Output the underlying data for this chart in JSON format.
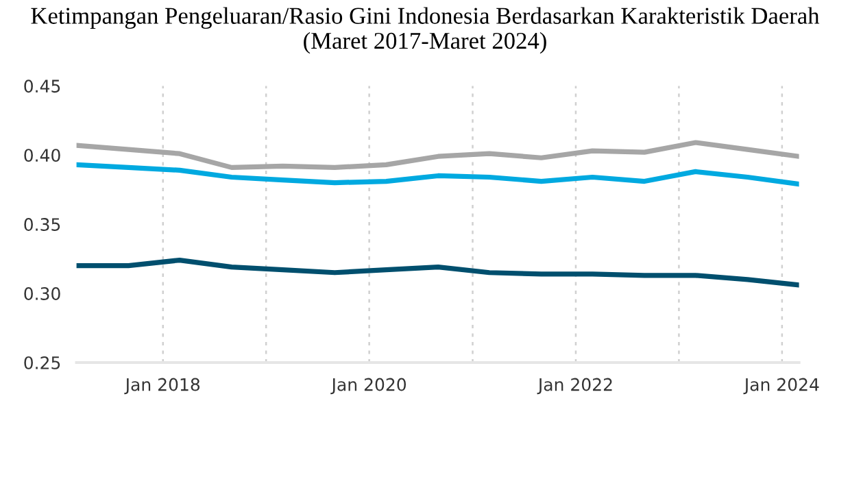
{
  "chart_data": {
    "type": "line",
    "title": "Ketimpangan Pengeluaran/Rasio Gini Indonesia Berdasarkan Karakteristik Daerah (Maret 2017-Maret 2024)",
    "x": [
      "2017-03",
      "2017-09",
      "2018-03",
      "2018-09",
      "2019-03",
      "2019-09",
      "2020-03",
      "2020-09",
      "2021-03",
      "2021-09",
      "2022-03",
      "2022-09",
      "2023-03",
      "2023-09",
      "2024-03"
    ],
    "series": [
      {
        "color": "#a6a6a6",
        "values": [
          0.407,
          0.404,
          0.401,
          0.391,
          0.392,
          0.391,
          0.393,
          0.399,
          0.401,
          0.398,
          0.403,
          0.402,
          0.409,
          0.404,
          0.399
        ]
      },
      {
        "color": "#00a9e0",
        "values": [
          0.393,
          0.391,
          0.389,
          0.384,
          0.382,
          0.38,
          0.381,
          0.385,
          0.384,
          0.381,
          0.384,
          0.381,
          0.388,
          0.384,
          0.379
        ]
      },
      {
        "color": "#004f6e",
        "values": [
          0.32,
          0.32,
          0.324,
          0.319,
          0.317,
          0.315,
          0.317,
          0.319,
          0.315,
          0.314,
          0.314,
          0.313,
          0.313,
          0.31,
          0.306
        ]
      }
    ],
    "xlim": [
      "2017-03",
      "2024-03"
    ],
    "xticks": [
      {
        "value": "2018-01",
        "label": "Jan 2018"
      },
      {
        "value": "2019-01",
        "label": null
      },
      {
        "value": "2020-01",
        "label": "Jan 2020"
      },
      {
        "value": "2021-01",
        "label": null
      },
      {
        "value": "2022-01",
        "label": "Jan 2022"
      },
      {
        "value": "2023-01",
        "label": null
      },
      {
        "value": "2024-01",
        "label": "Jan 2024"
      }
    ],
    "ylim": [
      0.25,
      0.45
    ],
    "yticks": [
      {
        "value": 0.25,
        "label": "0.25"
      },
      {
        "value": 0.3,
        "label": "0.30"
      },
      {
        "value": 0.35,
        "label": "0.35"
      },
      {
        "value": 0.4,
        "label": "0.40"
      },
      {
        "value": 0.45,
        "label": "0.45"
      }
    ],
    "grid": "x",
    "marker": "none",
    "line_style": "solid"
  }
}
